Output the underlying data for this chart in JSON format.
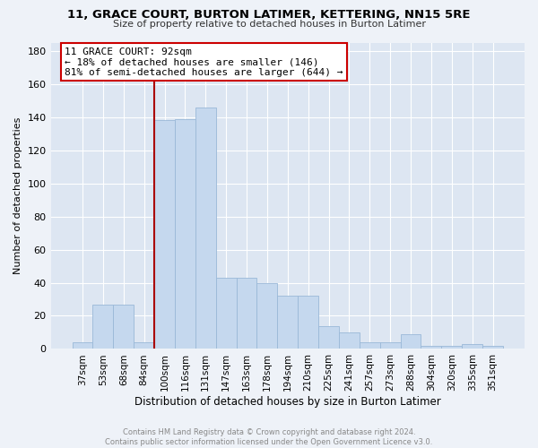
{
  "title": "11, GRACE COURT, BURTON LATIMER, KETTERING, NN15 5RE",
  "subtitle": "Size of property relative to detached houses in Burton Latimer",
  "xlabel": "Distribution of detached houses by size in Burton Latimer",
  "ylabel": "Number of detached properties",
  "categories": [
    "37sqm",
    "53sqm",
    "68sqm",
    "84sqm",
    "100sqm",
    "116sqm",
    "131sqm",
    "147sqm",
    "163sqm",
    "178sqm",
    "194sqm",
    "210sqm",
    "225sqm",
    "241sqm",
    "257sqm",
    "273sqm",
    "288sqm",
    "304sqm",
    "320sqm",
    "335sqm",
    "351sqm"
  ],
  "values": [
    4,
    27,
    27,
    4,
    138,
    139,
    146,
    43,
    43,
    40,
    32,
    32,
    14,
    10,
    4,
    4,
    9,
    2,
    2,
    3,
    2
  ],
  "bar_color": "#c5d8ee",
  "bar_edge_color": "#9ab8d8",
  "vline_x_index": 3,
  "vline_color": "#aa0000",
  "annotation_text": "11 GRACE COURT: 92sqm\n← 18% of detached houses are smaller (146)\n81% of semi-detached houses are larger (644) →",
  "annotation_box_color": "#ffffff",
  "annotation_box_edge_color": "#cc0000",
  "ylim": [
    0,
    185
  ],
  "yticks": [
    0,
    20,
    40,
    60,
    80,
    100,
    120,
    140,
    160,
    180
  ],
  "footer": "Contains HM Land Registry data © Crown copyright and database right 2024.\nContains public sector information licensed under the Open Government Licence v3.0.",
  "bg_color": "#eef2f8",
  "plot_bg_color": "#dde6f2"
}
